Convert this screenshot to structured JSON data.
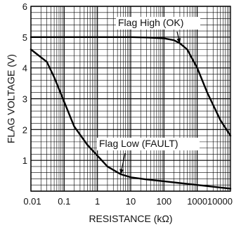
{
  "chart_data": {
    "type": "line",
    "xlabel": "RESISTANCE (kΩ)",
    "ylabel": "FLAG VOLTAGE (V)",
    "xscale": "log",
    "xlim": [
      0.01,
      10000
    ],
    "ylim": [
      0,
      6
    ],
    "grid": true,
    "x_ticks": [
      {
        "value": 0.01,
        "label": "0.01"
      },
      {
        "value": 0.1,
        "label": "0.1"
      },
      {
        "value": 1,
        "label": "1"
      },
      {
        "value": 10,
        "label": "10"
      },
      {
        "value": 100,
        "label": "100"
      },
      {
        "value": 1000,
        "label": "1000"
      },
      {
        "value": 10000,
        "label": "10000"
      }
    ],
    "y_ticks": [
      {
        "value": 1,
        "label": "1"
      },
      {
        "value": 2,
        "label": "2"
      },
      {
        "value": 3,
        "label": "3"
      },
      {
        "value": 4,
        "label": "4"
      },
      {
        "value": 5,
        "label": "5"
      },
      {
        "value": 6,
        "label": "6"
      }
    ],
    "series": [
      {
        "key": "flag-high",
        "x": [
          0.01,
          0.1,
          1,
          10,
          30,
          100,
          200,
          300,
          500,
          1000,
          2000,
          5000,
          10000
        ],
        "y": [
          5.0,
          5.0,
          5.0,
          5.0,
          4.99,
          4.96,
          4.9,
          4.8,
          4.6,
          4.0,
          3.2,
          2.3,
          1.8
        ]
      },
      {
        "key": "flag-low",
        "x": [
          0.01,
          0.03,
          0.05,
          0.1,
          0.2,
          0.5,
          1,
          2,
          5,
          10,
          30,
          100,
          1000,
          10000
        ],
        "y": [
          4.6,
          4.2,
          3.7,
          2.9,
          2.1,
          1.5,
          1.15,
          0.8,
          0.55,
          0.45,
          0.38,
          0.32,
          0.2,
          0.08
        ]
      }
    ],
    "annotations": [
      {
        "key": "flag-high",
        "text": "Flag High (OK)",
        "arrow_to_x": 300,
        "arrow_to_y": 4.8
      },
      {
        "key": "flag-low",
        "text": "Flag Low (FAULT)",
        "arrow_to_x": 5,
        "arrow_to_y": 0.55
      }
    ]
  }
}
